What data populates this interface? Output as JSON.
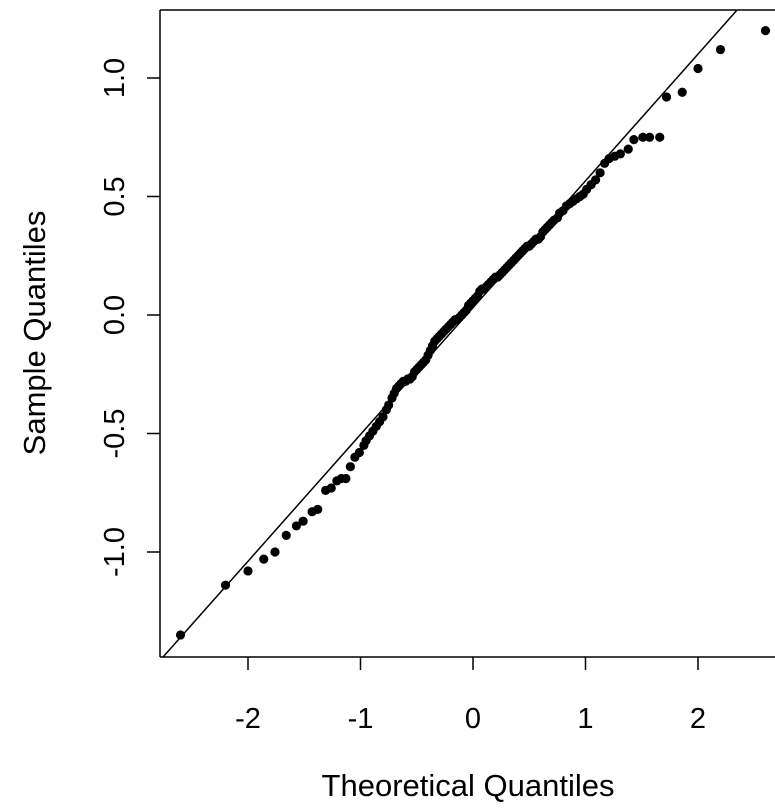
{
  "chart_data": {
    "type": "scatter",
    "title": "",
    "xlabel": "Theoretical Quantiles",
    "ylabel": "Sample Quantiles",
    "xlim": [
      -2.68,
      2.68
    ],
    "ylim": [
      -1.45,
      1.28
    ],
    "xticks": [
      -2,
      -1,
      0,
      1,
      2
    ],
    "xtick_labels": [
      "-2",
      "-1",
      "0",
      "1",
      "2"
    ],
    "yticks": [
      -1.0,
      -0.5,
      0.0,
      0.5,
      1.0
    ],
    "ytick_labels": [
      "-1.0",
      "-0.5",
      "0.0",
      "0.5",
      "1.0"
    ],
    "grid": false,
    "legend": "none",
    "reference_line": {
      "slope": 0.535,
      "intercept": 0.031
    },
    "points_color": "#000000",
    "points": [
      [
        -2.6,
        -1.35
      ],
      [
        -2.2,
        -1.14
      ],
      [
        -2.0,
        -1.08
      ],
      [
        -1.86,
        -1.03
      ],
      [
        -1.76,
        -1.0
      ],
      [
        -1.66,
        -0.93
      ],
      [
        -1.57,
        -0.89
      ],
      [
        -1.51,
        -0.87
      ],
      [
        -1.43,
        -0.83
      ],
      [
        -1.38,
        -0.82
      ],
      [
        -1.31,
        -0.74
      ],
      [
        -1.26,
        -0.73
      ],
      [
        -1.21,
        -0.7
      ],
      [
        -1.17,
        -0.69
      ],
      [
        -1.13,
        -0.69
      ],
      [
        -1.09,
        -0.64
      ],
      [
        -1.05,
        -0.6
      ],
      [
        -1.01,
        -0.58
      ],
      [
        -0.97,
        -0.55
      ],
      [
        -0.95,
        -0.53
      ],
      [
        -0.92,
        -0.51
      ],
      [
        -0.89,
        -0.49
      ],
      [
        -0.86,
        -0.47
      ],
      [
        -0.83,
        -0.45
      ],
      [
        -0.8,
        -0.43
      ],
      [
        -0.77,
        -0.4
      ],
      [
        -0.75,
        -0.38
      ],
      [
        -0.72,
        -0.35
      ],
      [
        -0.7,
        -0.33
      ],
      [
        -0.68,
        -0.31
      ],
      [
        -0.66,
        -0.3
      ],
      [
        -0.64,
        -0.29
      ],
      [
        -0.62,
        -0.28
      ],
      [
        -0.6,
        -0.28
      ],
      [
        -0.58,
        -0.27
      ],
      [
        -0.56,
        -0.27
      ],
      [
        -0.54,
        -0.26
      ],
      [
        -0.52,
        -0.24
      ],
      [
        -0.5,
        -0.23
      ],
      [
        -0.48,
        -0.22
      ],
      [
        -0.46,
        -0.21
      ],
      [
        -0.44,
        -0.2
      ],
      [
        -0.42,
        -0.19
      ],
      [
        -0.4,
        -0.17
      ],
      [
        -0.38,
        -0.15
      ],
      [
        -0.36,
        -0.13
      ],
      [
        -0.34,
        -0.11
      ],
      [
        -0.32,
        -0.1
      ],
      [
        -0.3,
        -0.09
      ],
      [
        -0.28,
        -0.08
      ],
      [
        -0.26,
        -0.07
      ],
      [
        -0.24,
        -0.06
      ],
      [
        -0.22,
        -0.05
      ],
      [
        -0.2,
        -0.04
      ],
      [
        -0.18,
        -0.03
      ],
      [
        -0.16,
        -0.02
      ],
      [
        -0.14,
        -0.02
      ],
      [
        -0.12,
        -0.01
      ],
      [
        -0.1,
        0.0
      ],
      [
        -0.08,
        0.01
      ],
      [
        -0.06,
        0.02
      ],
      [
        -0.04,
        0.04
      ],
      [
        -0.02,
        0.05
      ],
      [
        0.0,
        0.06
      ],
      [
        0.02,
        0.07
      ],
      [
        0.04,
        0.08
      ],
      [
        0.06,
        0.1
      ],
      [
        0.08,
        0.11
      ],
      [
        0.1,
        0.11
      ],
      [
        0.12,
        0.12
      ],
      [
        0.14,
        0.13
      ],
      [
        0.16,
        0.14
      ],
      [
        0.18,
        0.15
      ],
      [
        0.2,
        0.16
      ],
      [
        0.22,
        0.16
      ],
      [
        0.24,
        0.17
      ],
      [
        0.26,
        0.18
      ],
      [
        0.28,
        0.19
      ],
      [
        0.3,
        0.2
      ],
      [
        0.32,
        0.21
      ],
      [
        0.34,
        0.22
      ],
      [
        0.36,
        0.23
      ],
      [
        0.38,
        0.24
      ],
      [
        0.4,
        0.25
      ],
      [
        0.42,
        0.26
      ],
      [
        0.44,
        0.27
      ],
      [
        0.46,
        0.28
      ],
      [
        0.48,
        0.29
      ],
      [
        0.5,
        0.29
      ],
      [
        0.52,
        0.3
      ],
      [
        0.54,
        0.31
      ],
      [
        0.56,
        0.32
      ],
      [
        0.58,
        0.32
      ],
      [
        0.6,
        0.33
      ],
      [
        0.62,
        0.35
      ],
      [
        0.64,
        0.36
      ],
      [
        0.66,
        0.37
      ],
      [
        0.68,
        0.38
      ],
      [
        0.7,
        0.39
      ],
      [
        0.72,
        0.4
      ],
      [
        0.75,
        0.41
      ],
      [
        0.77,
        0.43
      ],
      [
        0.8,
        0.44
      ],
      [
        0.83,
        0.46
      ],
      [
        0.86,
        0.47
      ],
      [
        0.89,
        0.48
      ],
      [
        0.92,
        0.49
      ],
      [
        0.95,
        0.5
      ],
      [
        0.98,
        0.51
      ],
      [
        1.01,
        0.53
      ],
      [
        1.05,
        0.55
      ],
      [
        1.09,
        0.57
      ],
      [
        1.13,
        0.6
      ],
      [
        1.17,
        0.64
      ],
      [
        1.21,
        0.66
      ],
      [
        1.26,
        0.67
      ],
      [
        1.31,
        0.68
      ],
      [
        1.38,
        0.7
      ],
      [
        1.43,
        0.74
      ],
      [
        1.51,
        0.75
      ],
      [
        1.57,
        0.75
      ],
      [
        1.66,
        0.75
      ],
      [
        1.72,
        0.92
      ],
      [
        1.86,
        0.94
      ],
      [
        2.0,
        1.04
      ],
      [
        2.2,
        1.12
      ],
      [
        2.6,
        1.2
      ]
    ]
  }
}
